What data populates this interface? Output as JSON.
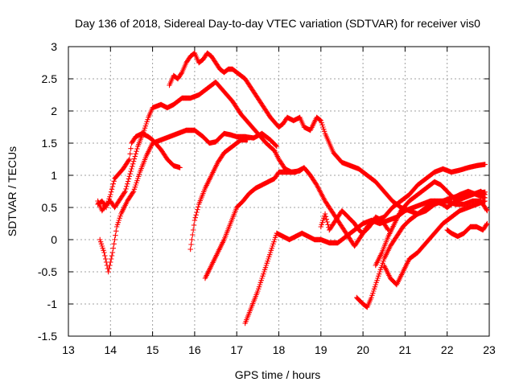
{
  "chart_data": {
    "type": "scatter",
    "title": "Day 136 of 2018, Sidereal Day-to-day VTEC variation (SDTVAR) for receiver vis0",
    "xlabel": "GPS time / hours",
    "ylabel": "SDTVAR / TECUs",
    "xlim": [
      13,
      23
    ],
    "ylim": [
      -1.5,
      3
    ],
    "xticks": [
      "13",
      "14",
      "15",
      "16",
      "17",
      "18",
      "19",
      "20",
      "21",
      "22",
      "23"
    ],
    "yticks": [
      "-1.5",
      "-1",
      "-0.5",
      "0",
      "0.5",
      "1",
      "1.5",
      "2",
      "2.5",
      "3"
    ],
    "grid": true,
    "marker": "+",
    "color": "#ff0000",
    "series": [
      {
        "points": [
          [
            13.7,
            0.55
          ],
          [
            13.8,
            0.6
          ],
          [
            13.9,
            0.5
          ],
          [
            14.0,
            0.7
          ],
          [
            14.1,
            0.95
          ],
          [
            14.3,
            1.1
          ],
          [
            14.45,
            1.25
          ],
          [
            14.5,
            1.5
          ],
          [
            14.6,
            1.6
          ],
          [
            14.75,
            1.65
          ],
          [
            14.9,
            1.6
          ],
          [
            15.0,
            1.55
          ],
          [
            15.2,
            1.4
          ],
          [
            15.35,
            1.25
          ],
          [
            15.5,
            1.15
          ],
          [
            15.65,
            1.12
          ]
        ]
      },
      {
        "points": [
          [
            13.7,
            0.6
          ],
          [
            13.8,
            0.45
          ],
          [
            13.9,
            0.55
          ],
          [
            14.0,
            0.6
          ],
          [
            14.1,
            0.5
          ],
          [
            14.2,
            0.6
          ],
          [
            14.35,
            0.75
          ],
          [
            14.5,
            1.1
          ],
          [
            14.65,
            1.45
          ],
          [
            14.8,
            1.7
          ],
          [
            14.9,
            1.9
          ],
          [
            15.0,
            2.05
          ],
          [
            15.2,
            2.1
          ],
          [
            15.35,
            2.05
          ],
          [
            15.5,
            2.1
          ],
          [
            15.7,
            2.2
          ],
          [
            15.9,
            2.2
          ],
          [
            16.1,
            2.25
          ],
          [
            16.3,
            2.35
          ],
          [
            16.5,
            2.45
          ],
          [
            16.7,
            2.3
          ],
          [
            16.9,
            2.15
          ],
          [
            17.1,
            1.95
          ],
          [
            17.3,
            1.8
          ],
          [
            17.5,
            1.65
          ],
          [
            17.7,
            1.5
          ],
          [
            17.9,
            1.38
          ],
          [
            18.0,
            1.25
          ],
          [
            18.15,
            1.1
          ],
          [
            18.3,
            1.05
          ],
          [
            18.5,
            1.07
          ],
          [
            18.6,
            1.12
          ],
          [
            18.75,
            1.0
          ],
          [
            18.9,
            0.85
          ],
          [
            19.1,
            0.6
          ],
          [
            19.3,
            0.4
          ],
          [
            19.5,
            0.2
          ],
          [
            19.65,
            0.05
          ],
          [
            19.8,
            -0.1
          ],
          [
            19.95,
            0.05
          ],
          [
            20.1,
            0.2
          ],
          [
            20.3,
            0.3
          ],
          [
            20.5,
            0.35
          ],
          [
            20.7,
            0.5
          ],
          [
            20.9,
            0.6
          ],
          [
            21.1,
            0.7
          ],
          [
            21.3,
            0.85
          ],
          [
            21.5,
            0.95
          ],
          [
            21.7,
            1.05
          ],
          [
            21.9,
            1.1
          ],
          [
            22.1,
            1.05
          ],
          [
            22.3,
            1.08
          ],
          [
            22.5,
            1.12
          ],
          [
            22.7,
            1.15
          ],
          [
            22.9,
            1.17
          ]
        ]
      },
      {
        "points": [
          [
            13.75,
            0.0
          ],
          [
            13.85,
            -0.2
          ],
          [
            13.95,
            -0.5
          ],
          [
            14.05,
            -0.2
          ],
          [
            14.15,
            0.2
          ],
          [
            14.25,
            0.4
          ],
          [
            14.4,
            0.6
          ],
          [
            14.55,
            0.75
          ],
          [
            14.7,
            1.05
          ],
          [
            14.85,
            1.3
          ],
          [
            15.0,
            1.5
          ],
          [
            15.2,
            1.55
          ],
          [
            15.4,
            1.6
          ],
          [
            15.6,
            1.65
          ],
          [
            15.8,
            1.7
          ],
          [
            16.0,
            1.7
          ],
          [
            16.2,
            1.6
          ],
          [
            16.35,
            1.5
          ],
          [
            16.5,
            1.52
          ],
          [
            16.7,
            1.65
          ],
          [
            16.85,
            1.63
          ],
          [
            17.0,
            1.6
          ],
          [
            17.2,
            1.6
          ],
          [
            17.4,
            1.58
          ],
          [
            17.6,
            1.65
          ],
          [
            17.8,
            1.55
          ],
          [
            17.95,
            1.45
          ]
        ]
      },
      {
        "points": [
          [
            15.4,
            2.4
          ],
          [
            15.5,
            2.55
          ],
          [
            15.6,
            2.5
          ],
          [
            15.7,
            2.6
          ],
          [
            15.8,
            2.75
          ],
          [
            15.9,
            2.85
          ],
          [
            16.0,
            2.9
          ],
          [
            16.1,
            2.75
          ],
          [
            16.2,
            2.8
          ],
          [
            16.3,
            2.9
          ],
          [
            16.4,
            2.85
          ],
          [
            16.5,
            2.75
          ],
          [
            16.6,
            2.65
          ],
          [
            16.7,
            2.6
          ],
          [
            16.8,
            2.65
          ],
          [
            16.9,
            2.65
          ],
          [
            17.0,
            2.6
          ],
          [
            17.2,
            2.5
          ],
          [
            17.4,
            2.3
          ],
          [
            17.6,
            2.1
          ],
          [
            17.8,
            1.9
          ],
          [
            18.0,
            1.75
          ],
          [
            18.1,
            1.8
          ],
          [
            18.2,
            1.9
          ],
          [
            18.35,
            1.85
          ],
          [
            18.5,
            1.9
          ],
          [
            18.6,
            1.75
          ],
          [
            18.75,
            1.7
          ],
          [
            18.9,
            1.9
          ],
          [
            19.0,
            1.85
          ],
          [
            19.1,
            1.65
          ],
          [
            19.3,
            1.35
          ],
          [
            19.5,
            1.2
          ],
          [
            19.7,
            1.15
          ],
          [
            19.9,
            1.1
          ],
          [
            20.1,
            1.0
          ],
          [
            20.3,
            0.9
          ],
          [
            20.5,
            0.75
          ],
          [
            20.7,
            0.6
          ],
          [
            20.9,
            0.5
          ],
          [
            21.1,
            0.45
          ],
          [
            21.3,
            0.4
          ],
          [
            21.5,
            0.45
          ],
          [
            21.7,
            0.55
          ],
          [
            21.9,
            0.6
          ],
          [
            22.1,
            0.65
          ],
          [
            22.3,
            0.68
          ],
          [
            22.5,
            0.7
          ],
          [
            22.7,
            0.72
          ],
          [
            22.9,
            0.74
          ]
        ]
      },
      {
        "points": [
          [
            15.9,
            -0.15
          ],
          [
            16.0,
            0.3
          ],
          [
            16.1,
            0.55
          ],
          [
            16.25,
            0.8
          ],
          [
            16.4,
            1.0
          ],
          [
            16.55,
            1.2
          ],
          [
            16.7,
            1.35
          ],
          [
            16.9,
            1.45
          ],
          [
            17.1,
            1.55
          ],
          [
            17.25,
            1.55
          ]
        ]
      },
      {
        "points": [
          [
            16.25,
            -0.6
          ],
          [
            16.4,
            -0.4
          ],
          [
            16.55,
            -0.2
          ],
          [
            16.7,
            0.0
          ],
          [
            16.85,
            0.25
          ],
          [
            17.0,
            0.5
          ],
          [
            17.15,
            0.6
          ],
          [
            17.3,
            0.72
          ],
          [
            17.45,
            0.8
          ],
          [
            17.6,
            0.85
          ],
          [
            17.75,
            0.9
          ],
          [
            17.9,
            0.95
          ],
          [
            18.0,
            1.05
          ],
          [
            18.2,
            1.05
          ],
          [
            18.4,
            1.05
          ],
          [
            18.55,
            1.1
          ]
        ]
      },
      {
        "points": [
          [
            17.2,
            -1.3
          ],
          [
            17.35,
            -1.05
          ],
          [
            17.5,
            -0.8
          ],
          [
            17.65,
            -0.5
          ],
          [
            17.8,
            -0.2
          ],
          [
            17.95,
            0.1
          ],
          [
            18.1,
            0.05
          ],
          [
            18.25,
            0.0
          ],
          [
            18.4,
            0.05
          ],
          [
            18.55,
            0.1
          ],
          [
            18.7,
            0.05
          ],
          [
            18.85,
            0.0
          ],
          [
            19.0,
            0.0
          ],
          [
            19.2,
            -0.05
          ],
          [
            19.4,
            -0.05
          ],
          [
            19.6,
            0.05
          ],
          [
            19.8,
            0.15
          ],
          [
            20.0,
            0.25
          ],
          [
            20.2,
            0.3
          ],
          [
            20.4,
            0.25
          ],
          [
            20.6,
            0.3
          ],
          [
            20.8,
            0.35
          ],
          [
            21.0,
            0.45
          ],
          [
            21.2,
            0.5
          ],
          [
            21.4,
            0.55
          ],
          [
            21.6,
            0.6
          ],
          [
            21.8,
            0.6
          ],
          [
            22.0,
            0.6
          ],
          [
            22.2,
            0.55
          ],
          [
            22.4,
            0.55
          ],
          [
            22.6,
            0.6
          ],
          [
            22.8,
            0.6
          ],
          [
            22.95,
            0.45
          ]
        ]
      },
      {
        "points": [
          [
            19.0,
            0.2
          ],
          [
            19.1,
            0.4
          ],
          [
            19.2,
            0.15
          ],
          [
            19.35,
            0.3
          ],
          [
            19.5,
            0.45
          ],
          [
            19.65,
            0.35
          ],
          [
            19.8,
            0.25
          ],
          [
            19.9,
            0.15
          ],
          [
            20.0,
            0.1
          ],
          [
            20.15,
            0.2
          ],
          [
            20.3,
            0.35
          ],
          [
            20.45,
            0.3
          ],
          [
            20.6,
            0.15
          ]
        ]
      },
      {
        "points": [
          [
            19.85,
            -0.9
          ],
          [
            20.0,
            -1.0
          ],
          [
            20.1,
            -1.05
          ],
          [
            20.2,
            -0.9
          ],
          [
            20.35,
            -0.6
          ],
          [
            20.5,
            -0.3
          ],
          [
            20.65,
            -0.1
          ],
          [
            20.8,
            0.05
          ],
          [
            20.95,
            0.2
          ],
          [
            21.1,
            0.3
          ],
          [
            21.3,
            0.4
          ],
          [
            21.5,
            0.5
          ],
          [
            21.7,
            0.6
          ],
          [
            21.9,
            0.55
          ],
          [
            22.0,
            0.5
          ],
          [
            22.2,
            0.6
          ],
          [
            22.4,
            0.65
          ],
          [
            22.6,
            0.7
          ],
          [
            22.8,
            0.75
          ],
          [
            22.9,
            0.7
          ]
        ]
      },
      {
        "points": [
          [
            20.5,
            -0.4
          ],
          [
            20.65,
            -0.6
          ],
          [
            20.8,
            -0.7
          ],
          [
            20.95,
            -0.5
          ],
          [
            21.1,
            -0.3
          ],
          [
            21.3,
            -0.2
          ],
          [
            21.5,
            -0.05
          ],
          [
            21.7,
            0.1
          ],
          [
            21.9,
            0.25
          ],
          [
            22.1,
            0.35
          ],
          [
            22.3,
            0.45
          ],
          [
            22.5,
            0.5
          ],
          [
            22.7,
            0.55
          ],
          [
            22.9,
            0.6
          ]
        ]
      },
      {
        "points": [
          [
            20.3,
            -0.4
          ],
          [
            20.45,
            -0.2
          ],
          [
            20.6,
            0.05
          ],
          [
            20.75,
            0.25
          ],
          [
            20.9,
            0.45
          ],
          [
            21.1,
            0.6
          ],
          [
            21.3,
            0.7
          ],
          [
            21.5,
            0.8
          ],
          [
            21.7,
            0.9
          ],
          [
            21.85,
            0.85
          ],
          [
            22.0,
            0.75
          ],
          [
            22.15,
            0.65
          ],
          [
            22.3,
            0.7
          ],
          [
            22.5,
            0.75
          ],
          [
            22.7,
            0.7
          ],
          [
            22.9,
            0.65
          ]
        ]
      },
      {
        "points": [
          [
            22.0,
            0.15
          ],
          [
            22.1,
            0.1
          ],
          [
            22.25,
            0.05
          ],
          [
            22.4,
            0.1
          ],
          [
            22.55,
            0.2
          ],
          [
            22.7,
            0.2
          ],
          [
            22.85,
            0.15
          ],
          [
            22.95,
            0.25
          ]
        ]
      }
    ]
  }
}
